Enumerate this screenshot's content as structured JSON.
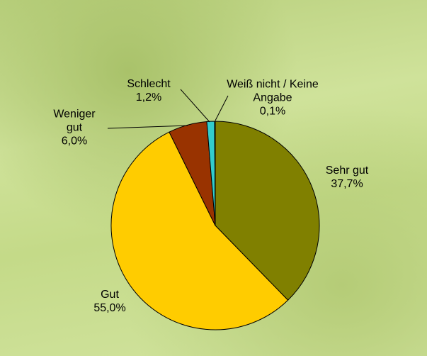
{
  "chart_data": {
    "type": "pie",
    "categories": [
      "Sehr gut",
      "Gut",
      "Weniger gut",
      "Schlecht",
      "Weiß nicht / Keine Angabe"
    ],
    "values": [
      37.7,
      55.0,
      6.0,
      1.2,
      0.1
    ],
    "value_labels": [
      "37,7%",
      "55,0%",
      "6,0%",
      "1,2%",
      "0,1%"
    ],
    "colors": [
      "#808000",
      "#ffcc00",
      "#993300",
      "#33cccc",
      "#ccffff"
    ]
  }
}
